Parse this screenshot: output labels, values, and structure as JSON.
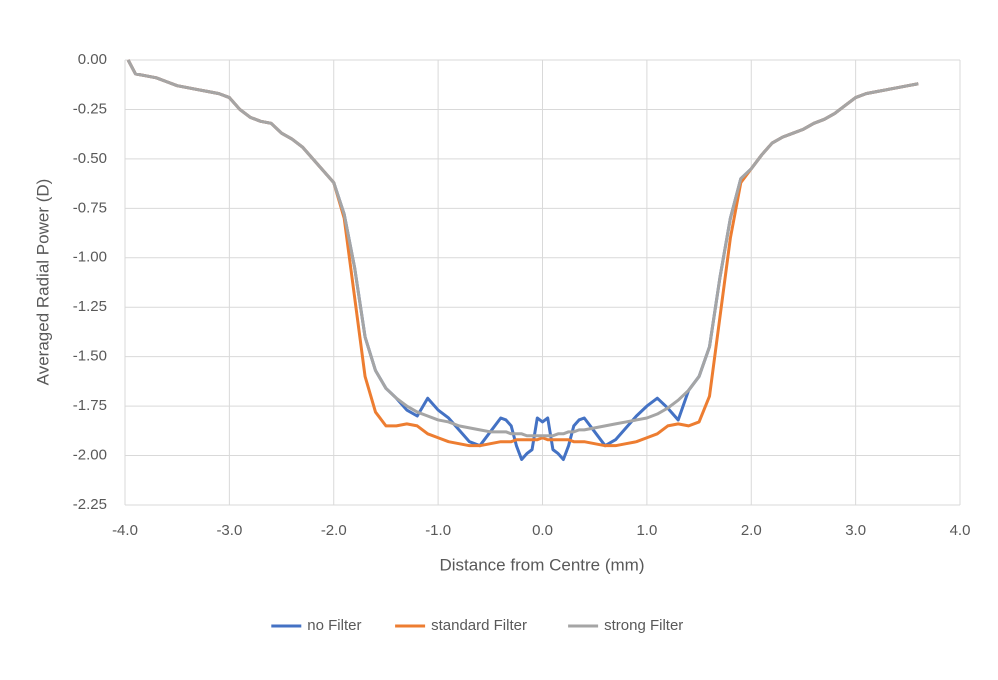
{
  "chart_data": {
    "type": "line",
    "x_label": "Distance from Centre (mm)",
    "y_label": "Averaged Radial Power (D)",
    "x": [
      -3.97,
      -3.9,
      -3.8,
      -3.7,
      -3.6,
      -3.5,
      -3.4,
      -3.3,
      -3.2,
      -3.1,
      -3.0,
      -2.9,
      -2.8,
      -2.7,
      -2.6,
      -2.5,
      -2.4,
      -2.3,
      -2.2,
      -2.1,
      -2.0,
      -1.9,
      -1.8,
      -1.7,
      -1.6,
      -1.5,
      -1.4,
      -1.3,
      -1.2,
      -1.1,
      -1.0,
      -0.9,
      -0.8,
      -0.7,
      -0.6,
      -0.5,
      -0.4,
      -0.35,
      -0.3,
      -0.25,
      -0.2,
      -0.15,
      -0.1,
      -0.05,
      0,
      0.05,
      0.1,
      0.15,
      0.2,
      0.25,
      0.3,
      0.35,
      0.4,
      0.5,
      0.6,
      0.7,
      0.8,
      0.9,
      1.0,
      1.1,
      1.2,
      1.3,
      1.4,
      1.5,
      1.6,
      1.7,
      1.8,
      1.9,
      2.0,
      2.1,
      2.2,
      2.3,
      2.4,
      2.5,
      2.6,
      2.7,
      2.8,
      2.9,
      3.0,
      3.1,
      3.2,
      3.3,
      3.4,
      3.5,
      3.6
    ],
    "series": [
      {
        "name": "no Filter",
        "color": "#4472c4",
        "values": [
          0,
          -0.07,
          -0.08,
          -0.09,
          -0.11,
          -0.13,
          -0.14,
          -0.15,
          -0.16,
          -0.17,
          -0.19,
          -0.25,
          -0.29,
          -0.31,
          -0.32,
          -0.37,
          -0.4,
          -0.44,
          -0.5,
          -0.56,
          -0.62,
          -0.78,
          -1.05,
          -1.4,
          -1.57,
          -1.66,
          -1.71,
          -1.77,
          -1.8,
          -1.71,
          -1.77,
          -1.81,
          -1.87,
          -1.93,
          -1.95,
          -1.88,
          -1.81,
          -1.82,
          -1.85,
          -1.95,
          -2.02,
          -1.99,
          -1.97,
          -1.81,
          -1.83,
          -1.81,
          -1.97,
          -1.99,
          -2.02,
          -1.95,
          -1.85,
          -1.82,
          -1.81,
          -1.88,
          -1.95,
          -1.92,
          -1.86,
          -1.8,
          -1.75,
          -1.71,
          -1.76,
          -1.82,
          -1.67,
          -1.6,
          -1.45,
          -1.1,
          -0.8,
          -0.6,
          -0.55,
          -0.48,
          -0.42,
          -0.39,
          -0.37,
          -0.35,
          -0.32,
          -0.3,
          -0.27,
          -0.23,
          -0.19,
          -0.17,
          -0.16,
          -0.15,
          -0.14,
          -0.13,
          -0.12
        ]
      },
      {
        "name": "standard Filter",
        "color": "#ed7d31",
        "values": [
          0,
          -0.07,
          -0.08,
          -0.09,
          -0.11,
          -0.13,
          -0.14,
          -0.15,
          -0.16,
          -0.17,
          -0.19,
          -0.25,
          -0.29,
          -0.31,
          -0.32,
          -0.37,
          -0.4,
          -0.44,
          -0.5,
          -0.56,
          -0.62,
          -0.8,
          -1.2,
          -1.6,
          -1.78,
          -1.85,
          -1.85,
          -1.84,
          -1.85,
          -1.89,
          -1.91,
          -1.93,
          -1.94,
          -1.95,
          -1.95,
          -1.94,
          -1.93,
          -1.93,
          -1.93,
          -1.92,
          -1.92,
          -1.92,
          -1.92,
          -1.92,
          -1.91,
          -1.92,
          -1.92,
          -1.92,
          -1.92,
          -1.92,
          -1.93,
          -1.93,
          -1.93,
          -1.94,
          -1.95,
          -1.95,
          -1.94,
          -1.93,
          -1.91,
          -1.89,
          -1.85,
          -1.84,
          -1.85,
          -1.83,
          -1.7,
          -1.3,
          -0.9,
          -0.62,
          -0.55,
          -0.48,
          -0.42,
          -0.39,
          -0.37,
          -0.35,
          -0.32,
          -0.3,
          -0.27,
          -0.23,
          -0.19,
          -0.17,
          -0.16,
          -0.15,
          -0.14,
          -0.13,
          -0.12
        ]
      },
      {
        "name": "strong Filter",
        "color": "#a5a5a5",
        "values": [
          0,
          -0.07,
          -0.08,
          -0.09,
          -0.11,
          -0.13,
          -0.14,
          -0.15,
          -0.16,
          -0.17,
          -0.19,
          -0.25,
          -0.29,
          -0.31,
          -0.32,
          -0.37,
          -0.4,
          -0.44,
          -0.5,
          -0.56,
          -0.62,
          -0.78,
          -1.05,
          -1.4,
          -1.57,
          -1.66,
          -1.71,
          -1.75,
          -1.78,
          -1.8,
          -1.82,
          -1.83,
          -1.85,
          -1.86,
          -1.87,
          -1.88,
          -1.88,
          -1.88,
          -1.89,
          -1.89,
          -1.89,
          -1.9,
          -1.9,
          -1.9,
          -1.9,
          -1.9,
          -1.9,
          -1.89,
          -1.89,
          -1.88,
          -1.88,
          -1.87,
          -1.87,
          -1.86,
          -1.85,
          -1.84,
          -1.83,
          -1.82,
          -1.81,
          -1.79,
          -1.76,
          -1.72,
          -1.67,
          -1.6,
          -1.45,
          -1.1,
          -0.8,
          -0.6,
          -0.55,
          -0.48,
          -0.42,
          -0.39,
          -0.37,
          -0.35,
          -0.32,
          -0.3,
          -0.27,
          -0.23,
          -0.19,
          -0.17,
          -0.16,
          -0.15,
          -0.14,
          -0.13,
          -0.12
        ]
      }
    ],
    "xlim": [
      -4,
      4
    ],
    "xticks": [
      {
        "value": -4,
        "label": "-4.0"
      },
      {
        "value": -3,
        "label": "-3.0"
      },
      {
        "value": -2,
        "label": "-2.0"
      },
      {
        "value": -1,
        "label": "-1.0"
      },
      {
        "value": 0,
        "label": "0.0"
      },
      {
        "value": 1,
        "label": "1.0"
      },
      {
        "value": 2,
        "label": "2.0"
      },
      {
        "value": 3,
        "label": "3.0"
      },
      {
        "value": 4,
        "label": "4.0"
      }
    ],
    "ylim": [
      -2.25,
      0
    ],
    "yticks": [
      {
        "value": 0,
        "label": "0.00"
      },
      {
        "value": -0.25,
        "label": "-0.25"
      },
      {
        "value": -0.5,
        "label": "-0.50"
      },
      {
        "value": -0.75,
        "label": "-0.75"
      },
      {
        "value": -1,
        "label": "-1.00"
      },
      {
        "value": -1.25,
        "label": "-1.25"
      },
      {
        "value": -1.5,
        "label": "-1.50"
      },
      {
        "value": -1.75,
        "label": "-1.75"
      },
      {
        "value": -2,
        "label": "-2.00"
      },
      {
        "value": -2.25,
        "label": "-2.25"
      }
    ],
    "grid": true,
    "legend": "bottom"
  }
}
